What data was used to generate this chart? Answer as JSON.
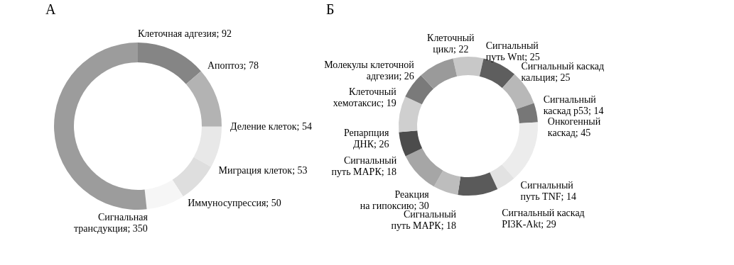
{
  "chart_data": [
    {
      "type": "donut",
      "title": "А",
      "categories": [
        "Клеточная адгезия; 92",
        "Апоптоз; 78",
        "Деление клеток; 54",
        "Миграция клеток; 53",
        "Иммуносупрессия; 50",
        "Сигнальная\nтрансдукция; 350"
      ],
      "values": [
        92,
        78,
        54,
        53,
        50,
        350
      ],
      "colors": [
        "#858585",
        "#b3b3b3",
        "#e8e8e8",
        "#dedede",
        "#f6f6f6",
        "#9c9c9c"
      ]
    },
    {
      "type": "donut",
      "title": "Б",
      "categories": [
        "Клеточный\nцикл; 22",
        "Сигнальный\nпуть Wnt; 25",
        "Сигнальный каскад\nкальция; 25",
        "Сигнальный\nкаскад p53; 14",
        "Онкогенный\nкаскад; 45",
        "Сигнальный\nпуть TNF; 14",
        "Сигнальный каскад\nPI3K-Akt; 29",
        "Сигнальный\nпуть МАРК; 18",
        "Реакция\nна гипоксию; 30",
        "Сигнальный\nпуть МАРК; 18",
        "Репарпция\nДНК; 26",
        "Клеточный\nхемотаксис; 19",
        "Молекулы клеточной\nадгезии; 26"
      ],
      "values": [
        22,
        25,
        25,
        14,
        45,
        14,
        29,
        18,
        30,
        18,
        26,
        19,
        26
      ],
      "colors": [
        "#c8c8c8",
        "#5e5e5e",
        "#b8b8b8",
        "#777777",
        "#ececec",
        "#e2e2e2",
        "#5a5a5a",
        "#bdbdbd",
        "#a6a6a6",
        "#4c4c4c",
        "#cfcfcf",
        "#7a7a7a",
        "#9a9a9a"
      ]
    }
  ]
}
